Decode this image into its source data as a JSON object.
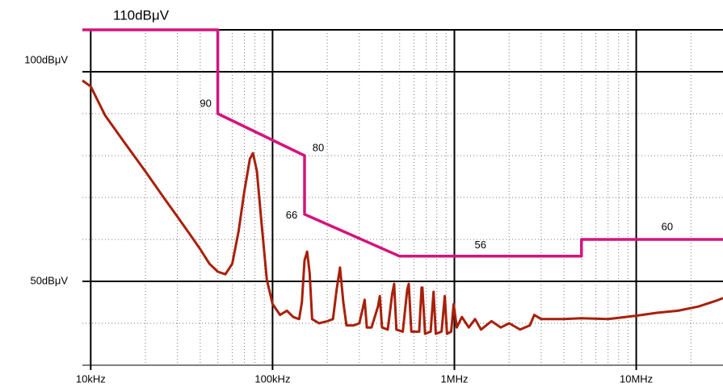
{
  "chart_data": {
    "type": "line",
    "xscale": "log",
    "xlim": [
      9000,
      30000000
    ],
    "ylim": [
      30,
      110
    ],
    "xticks": [
      {
        "value": 10000,
        "label": "10kHz"
      },
      {
        "value": 100000,
        "label": "100kHz"
      },
      {
        "value": 1000000,
        "label": "1MHz"
      },
      {
        "value": 10000000,
        "label": "10MHz"
      }
    ],
    "yticks": [
      {
        "value": 50,
        "label": "50dBμV"
      },
      {
        "value": 100,
        "label": "100dBμV"
      },
      {
        "value": 110,
        "label": "110dBμV"
      }
    ],
    "xminor": [
      20000,
      30000,
      40000,
      50000,
      60000,
      70000,
      80000,
      90000,
      200000,
      300000,
      400000,
      500000,
      600000,
      700000,
      800000,
      900000,
      2000000,
      3000000,
      4000000,
      5000000,
      6000000,
      7000000,
      8000000,
      9000000,
      20000000
    ],
    "yminor": [
      40,
      60,
      70,
      80,
      90
    ],
    "series": [
      {
        "color": "#a8200a",
        "x": [
          9000,
          10000,
          12000,
          15000,
          20000,
          25000,
          30000,
          35000,
          40000,
          45000,
          50000,
          55000,
          60000,
          65000,
          70000,
          75000,
          78000,
          82000,
          87000,
          93000,
          100000,
          110000,
          120000,
          130000,
          140000,
          145000,
          150000,
          155000,
          160000,
          165000,
          180000,
          200000,
          215000,
          225000,
          235000,
          245000,
          255000,
          280000,
          300000,
          315000,
          321000,
          330000,
          350000,
          380000,
          389000,
          400000,
          430000,
          455000,
          466000,
          480000,
          520000,
          550000,
          561000,
          580000,
          640000,
          660000,
          667000,
          690000,
          740000,
          768000,
          790000,
          850000,
          885000,
          910000,
          960000,
          991000,
          1030000,
          1100000,
          1200000,
          1300000,
          1400000,
          1600000,
          1800000,
          2000000,
          2300000,
          2600000,
          2750000,
          3000000,
          4000000,
          5000000,
          7000000,
          10000000,
          13000000,
          17000000,
          22000000,
          28000000,
          30000000
        ],
        "values": [
          97.9,
          96.5,
          89.6,
          83.7,
          76.2,
          70.2,
          65.4,
          61.3,
          57.7,
          54.2,
          52.3,
          51.7,
          54.2,
          61.9,
          71.5,
          79.2,
          80.6,
          76.3,
          63.8,
          50.4,
          44.6,
          42,
          43,
          41.5,
          41,
          45,
          55,
          57.1,
          52,
          41,
          40,
          40.5,
          41,
          48,
          53.3,
          45,
          39.5,
          39.5,
          40,
          44,
          45.6,
          39,
          39,
          44,
          46.5,
          39,
          38.5,
          47,
          49.4,
          38.5,
          38,
          48,
          49.4,
          38,
          38,
          48.5,
          48.5,
          37.5,
          38,
          47.5,
          37.5,
          38,
          46.5,
          37.5,
          38,
          44.6,
          39,
          41.5,
          39,
          41,
          38.5,
          40.5,
          39,
          40,
          38.5,
          39.5,
          42,
          41,
          41,
          41.2,
          41,
          41.8,
          42.5,
          43,
          44,
          45.5,
          46
        ]
      },
      {
        "color": "#d4147c",
        "x": [
          9000,
          50000,
          50000,
          150000,
          150000,
          500000,
          5000000,
          5000000,
          30000000
        ],
        "values": [
          110,
          110,
          90,
          80,
          66,
          56,
          56,
          60,
          60
        ]
      }
    ],
    "annotations": [
      "90",
      "80",
      "66",
      "56",
      "60"
    ]
  }
}
